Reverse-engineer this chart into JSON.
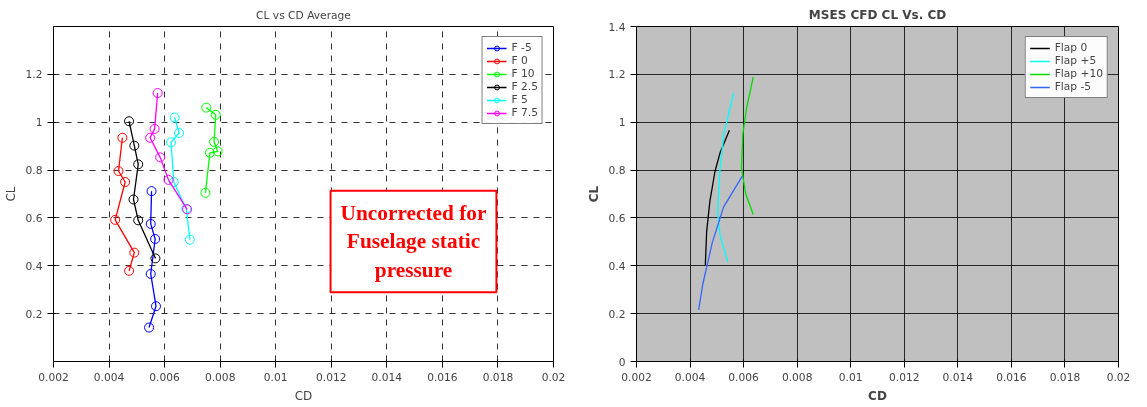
{
  "chart_data": [
    {
      "type": "line",
      "title": "CL vs CD Average",
      "xlabel": "CD",
      "ylabel": "CL",
      "xlim": [
        0.002,
        0.02
      ],
      "ylim": [
        0,
        1.4
      ],
      "xticks": [
        0.002,
        0.004,
        0.006,
        0.008,
        0.01,
        0.012,
        0.014,
        0.016,
        0.018,
        0.02
      ],
      "yticks": [
        0.2,
        0.4,
        0.6,
        0.8,
        1,
        1.2
      ],
      "grid": true,
      "legend": "top right",
      "marker": "circle",
      "annotations": [
        "Uncorrected for Fuselage static pressure"
      ],
      "series": [
        {
          "name": "F -5",
          "color": "#0000ff",
          "x": [
            0.00553,
            0.0055,
            0.00566,
            0.0055,
            0.00569,
            0.00544
          ],
          "values": [
            0.712,
            0.575,
            0.512,
            0.366,
            0.231,
            0.142
          ]
        },
        {
          "name": "F 0",
          "color": "#ff0000",
          "x": [
            0.00448,
            0.00434,
            0.00458,
            0.00422,
            0.00491,
            0.00472
          ],
          "values": [
            0.935,
            0.796,
            0.75,
            0.592,
            0.455,
            0.379
          ]
        },
        {
          "name": "F 10",
          "color": "#00ff00",
          "x": [
            0.0075,
            0.00784,
            0.00778,
            0.00791,
            0.00763,
            0.00747
          ],
          "values": [
            1.061,
            1.031,
            0.918,
            0.878,
            0.872,
            0.705
          ]
        },
        {
          "name": "F 2.5",
          "color": "#000000",
          "x": [
            0.00472,
            0.00491,
            0.00505,
            0.00488,
            0.00505,
            0.00567
          ],
          "values": [
            1.004,
            0.902,
            0.824,
            0.677,
            0.59,
            0.431
          ]
        },
        {
          "name": "F 5",
          "color": "#00ffff",
          "x": [
            0.00636,
            0.00652,
            0.00623,
            0.00633,
            0.00678,
            0.00691
          ],
          "values": [
            1.02,
            0.955,
            0.916,
            0.75,
            0.638,
            0.509
          ]
        },
        {
          "name": "F 7.5",
          "color": "#ff00ff",
          "x": [
            0.00575,
            0.00564,
            0.00548,
            0.00584,
            0.00614,
            0.00681
          ],
          "values": [
            1.122,
            0.972,
            0.935,
            0.853,
            0.759,
            0.636
          ]
        }
      ]
    },
    {
      "type": "line",
      "title": "MSES CFD CL Vs. CD",
      "xlabel": "CD",
      "ylabel": "CL",
      "xlim": [
        0.002,
        0.02
      ],
      "ylim": [
        0,
        1.4
      ],
      "xticks": [
        0.002,
        0.004,
        0.006,
        0.008,
        0.01,
        0.012,
        0.014,
        0.016,
        0.018,
        0.02
      ],
      "yticks": [
        0,
        0.2,
        0.4,
        0.6,
        0.8,
        1,
        1.2,
        1.4
      ],
      "grid": true,
      "legend": "top right",
      "series": [
        {
          "name": "Flap 0",
          "color": "#000000",
          "x": [
            0.00457,
            0.00462,
            0.00474,
            0.00493,
            0.00512,
            0.00547
          ],
          "values": [
            0.403,
            0.544,
            0.669,
            0.794,
            0.872,
            0.966
          ]
        },
        {
          "name": "Flap +5",
          "color": "#00ffff",
          "x": [
            0.00541,
            0.00512,
            0.00503,
            0.00511,
            0.00526,
            0.00563
          ],
          "values": [
            0.416,
            0.528,
            0.622,
            0.794,
            0.95,
            1.122
          ]
        },
        {
          "name": "Flap +10",
          "color": "#00dd00",
          "x": [
            0.00636,
            0.00608,
            0.00592,
            0.00597,
            0.00611,
            0.00636
          ],
          "values": [
            0.614,
            0.7,
            0.809,
            0.95,
            1.059,
            1.188
          ]
        },
        {
          "name": "Flap -5",
          "color": "#3366ff",
          "x": [
            0.00432,
            0.00448,
            0.00483,
            0.00525,
            0.00595
          ],
          "values": [
            0.216,
            0.325,
            0.497,
            0.645,
            0.775
          ]
        }
      ]
    }
  ]
}
